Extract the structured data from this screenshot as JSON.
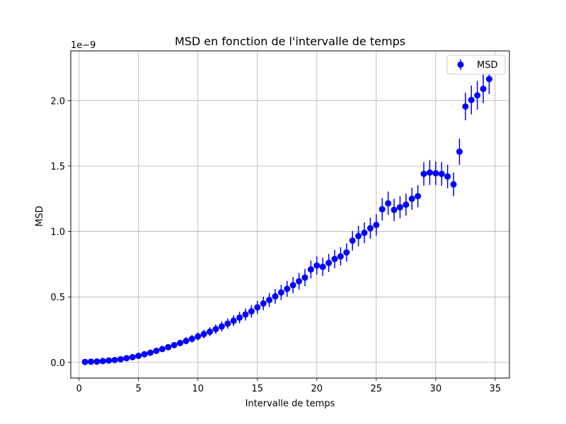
{
  "chart_data": {
    "type": "scatter",
    "title": "MSD en fonction de l'intervalle de temps",
    "xlabel": "Intervalle de temps",
    "ylabel": "MSD",
    "offset_text": "1e−9",
    "xlim": [
      -0.7,
      36.2
    ],
    "ylim": [
      -0.12,
      2.38
    ],
    "x_ticks": [
      0,
      5,
      10,
      15,
      20,
      25,
      30,
      35
    ],
    "x_tick_labels": [
      "0",
      "5",
      "10",
      "15",
      "20",
      "25",
      "30",
      "35"
    ],
    "y_ticks": [
      0.0,
      0.5,
      1.0,
      1.5,
      2.0
    ],
    "y_tick_labels": [
      "0.0",
      "0.5",
      "1.0",
      "1.5",
      "2.0"
    ],
    "grid": true,
    "legend": {
      "position": "top-right",
      "entries": [
        "MSD"
      ]
    },
    "series": [
      {
        "name": "MSD",
        "color": "#0000ff",
        "x": [
          0.5,
          1,
          1.5,
          2,
          2.5,
          3,
          3.5,
          4,
          4.5,
          5,
          5.5,
          6,
          6.5,
          7,
          7.5,
          8,
          8.5,
          9,
          9.5,
          10,
          10.5,
          11,
          11.5,
          12,
          12.5,
          13,
          13.5,
          14,
          14.5,
          15,
          15.5,
          16,
          16.5,
          17,
          17.5,
          18,
          18.5,
          19,
          19.5,
          20,
          20.5,
          21,
          21.5,
          22,
          22.5,
          23,
          23.5,
          24,
          24.5,
          25,
          25.5,
          26,
          26.5,
          27,
          27.5,
          28,
          28.5,
          29,
          29.5,
          30,
          30.5,
          31,
          31.5,
          32,
          32.5,
          33,
          33.5,
          34,
          34.5
        ],
        "y": [
          0.003,
          0.005,
          0.006,
          0.01,
          0.014,
          0.018,
          0.024,
          0.032,
          0.04,
          0.05,
          0.062,
          0.074,
          0.088,
          0.102,
          0.116,
          0.132,
          0.148,
          0.164,
          0.18,
          0.198,
          0.216,
          0.234,
          0.254,
          0.274,
          0.296,
          0.318,
          0.342,
          0.366,
          0.39,
          0.42,
          0.45,
          0.476,
          0.504,
          0.534,
          0.562,
          0.59,
          0.62,
          0.648,
          0.71,
          0.74,
          0.73,
          0.76,
          0.79,
          0.81,
          0.84,
          0.93,
          0.965,
          0.99,
          1.025,
          1.05,
          1.17,
          1.215,
          1.165,
          1.185,
          1.205,
          1.25,
          1.27,
          1.44,
          1.45,
          1.445,
          1.44,
          1.42,
          1.36,
          1.61,
          1.955,
          2.005,
          2.04,
          2.09,
          2.165
        ],
        "yerr": [
          0,
          0,
          0,
          0,
          0,
          0,
          0,
          0,
          0,
          0.01,
          0.012,
          0.014,
          0.016,
          0.018,
          0.02,
          0.022,
          0.024,
          0.026,
          0.028,
          0.03,
          0.032,
          0.034,
          0.036,
          0.038,
          0.04,
          0.042,
          0.044,
          0.046,
          0.048,
          0.05,
          0.052,
          0.054,
          0.056,
          0.058,
          0.06,
          0.062,
          0.064,
          0.066,
          0.068,
          0.07,
          0.07,
          0.07,
          0.07,
          0.07,
          0.07,
          0.075,
          0.078,
          0.08,
          0.08,
          0.082,
          0.085,
          0.09,
          0.085,
          0.085,
          0.085,
          0.085,
          0.085,
          0.09,
          0.095,
          0.09,
          0.09,
          0.09,
          0.09,
          0.1,
          0.105,
          0.11,
          0.11,
          0.11,
          0.115
        ]
      }
    ]
  }
}
